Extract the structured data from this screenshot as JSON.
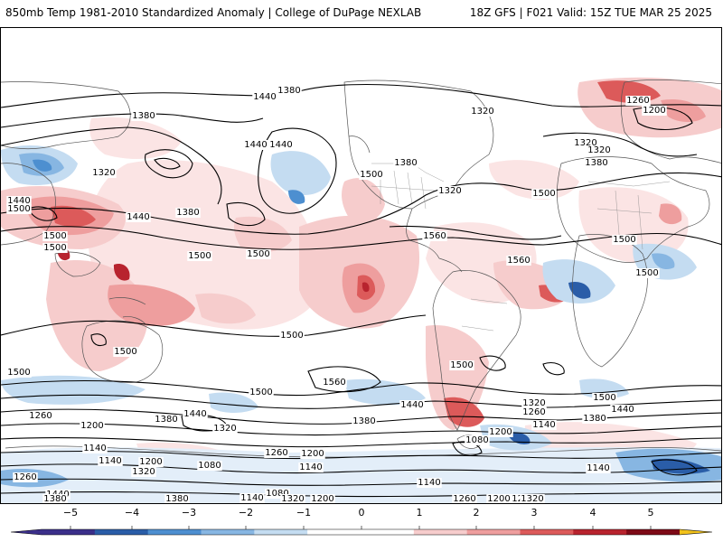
{
  "header": {
    "title": "850mb Temp 1981-2010 Standardized Anomaly | College of DuPage NEXLAB",
    "run_info": "18Z GFS | F021 Valid: 15Z TUE MAR 25 2025"
  },
  "map": {
    "contour_labels": [
      "1380",
      "1440",
      "1320",
      "1260",
      "1200",
      "1380",
      "1440",
      "1440",
      "1320",
      "1500",
      "1440",
      "1380",
      "1500",
      "1500",
      "1320",
      "1380",
      "1320",
      "1440",
      "1500",
      "1320",
      "1380",
      "1500",
      "1500",
      "1560",
      "1500",
      "1560",
      "1500",
      "1500",
      "1500",
      "1500",
      "1500",
      "1500",
      "1560",
      "1500",
      "1440",
      "1320",
      "1260",
      "1500",
      "1380",
      "1440",
      "1140",
      "1200",
      "1200",
      "1380",
      "1440",
      "1320",
      "1260",
      "1380",
      "1200",
      "1080",
      "1140",
      "1140",
      "1200",
      "1260",
      "1140",
      "1080",
      "1080",
      "1140",
      "1200",
      "1320",
      "1260",
      "1440",
      "1380",
      "1380",
      "1140",
      "1320",
      "1200",
      "1200",
      "1260",
      "1320",
      "1140"
    ]
  },
  "colorbar": {
    "tick_labels": [
      "−5",
      "−4",
      "−3",
      "−2",
      "−1",
      "0",
      "1",
      "2",
      "3",
      "4",
      "5"
    ],
    "colors": {
      "neg5": "#3b2f8a",
      "neg4": "#2a5da8",
      "neg3": "#4d8fd0",
      "neg2": "#87b6e2",
      "neg1": "#c4dcf1",
      "zero": "#ffffff",
      "pos1": "#f6cccc",
      "pos2": "#ee9e9e",
      "pos3": "#dc5a5a",
      "pos4": "#b8232e",
      "pos5": "#7e0a17",
      "over": "#f2c21b"
    }
  }
}
